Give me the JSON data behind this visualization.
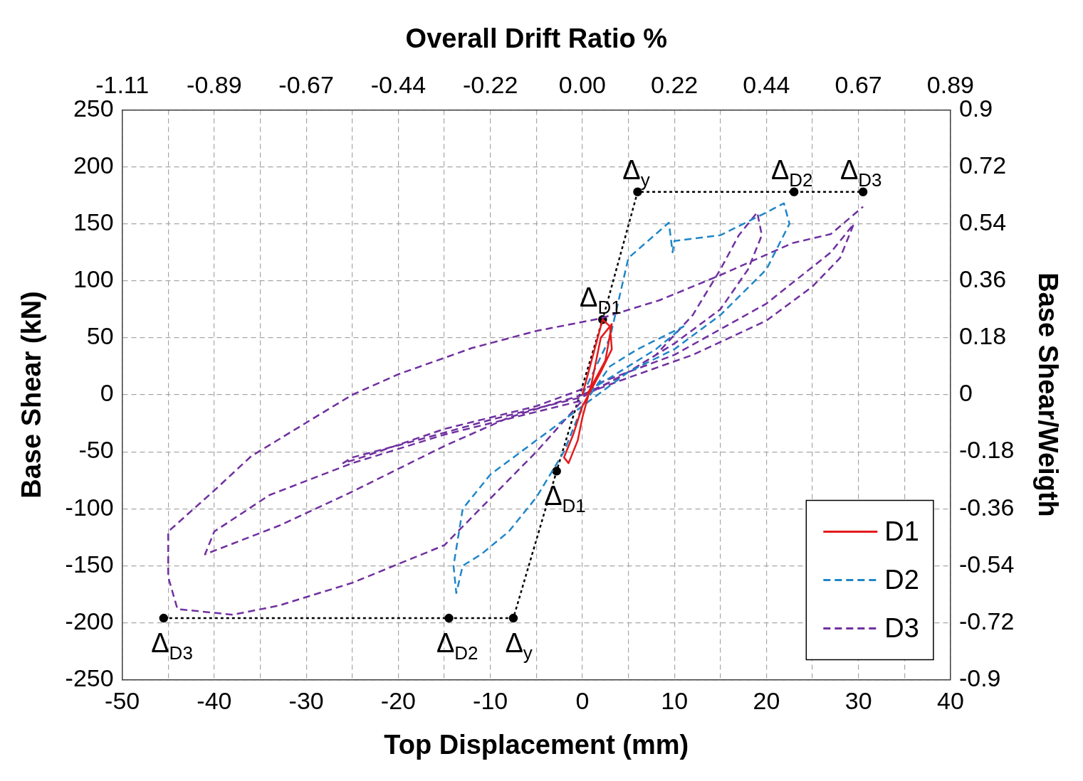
{
  "chart_data": {
    "type": "line",
    "x2label": "Overall Drift Ratio %",
    "xlabel": "Top Displacement (mm)",
    "ylabel": "Base Shear (kN)",
    "y2label": "Base Shear/Weigth",
    "xlim": [
      -50,
      40
    ],
    "xticks": [
      -50,
      {
        "value": -45,
        "label": null
      },
      -40,
      {
        "value": -35,
        "label": null
      },
      -30,
      {
        "value": -25,
        "label": null
      },
      -20,
      {
        "value": -15,
        "label": null
      },
      -10,
      {
        "value": -5,
        "label": null
      },
      0,
      {
        "value": 5,
        "label": null
      },
      10,
      {
        "value": 15,
        "label": null
      },
      20,
      {
        "value": 25,
        "label": null
      },
      30,
      {
        "value": 35,
        "label": null
      },
      40
    ],
    "x2lim": [
      -1.111,
      0.8889
    ],
    "x2ticks": [
      {
        "value": -1.111,
        "label": "-1.11"
      },
      {
        "value": -0.8889,
        "label": "-0.89"
      },
      {
        "value": -0.6667,
        "label": "-0.67"
      },
      {
        "value": -0.4444,
        "label": "-0.44"
      },
      {
        "value": -0.2222,
        "label": "-0.22"
      },
      {
        "value": 0,
        "label": "0.00"
      },
      {
        "value": 0.2222,
        "label": "0.22"
      },
      {
        "value": 0.4444,
        "label": "0.44"
      },
      {
        "value": 0.6667,
        "label": "0.67"
      },
      {
        "value": 0.8889,
        "label": "0.89"
      }
    ],
    "ylim": [
      -250,
      250
    ],
    "yticks": [
      -250,
      -200,
      -150,
      -100,
      -50,
      0,
      50,
      100,
      150,
      200,
      250
    ],
    "y2lim": [
      -0.9,
      0.9
    ],
    "y2ticks": [
      -0.9,
      -0.72,
      -0.54,
      -0.36,
      -0.18,
      0,
      0.18,
      0.36,
      0.54,
      0.72,
      0.9
    ],
    "grid": true,
    "legend": "bottom right",
    "series": [
      {
        "name": "D1",
        "color": "#e41a1c",
        "line_style": "solid",
        "x": [
          0,
          1,
          2.2,
          3,
          3.2,
          2,
          0,
          -1,
          -2,
          -1.5,
          -0.5,
          0,
          1,
          2,
          3.2,
          2.5,
          0.5
        ],
        "values": [
          0,
          30,
          66,
          60,
          40,
          20,
          -10,
          -35,
          -55,
          -60,
          -40,
          -20,
          10,
          50,
          62,
          30,
          0
        ]
      },
      {
        "name": "D2",
        "color": "#1f86c8",
        "line_style": "dashed",
        "x": [
          0,
          3,
          5,
          9.4,
          9.8,
          10,
          15,
          20,
          21.9,
          22.5,
          20,
          15,
          10,
          5,
          0,
          -5,
          -10,
          -13,
          -14,
          -13.7,
          -13,
          -11,
          -8,
          -5,
          -2,
          0,
          3,
          6,
          11,
          8,
          3,
          1
        ],
        "values": [
          0,
          50,
          120,
          151,
          125,
          135,
          140,
          160,
          168,
          150,
          110,
          70,
          40,
          20,
          -10,
          -40,
          -70,
          -100,
          -150,
          -174,
          -150,
          -140,
          -120,
          -90,
          -50,
          -10,
          25,
          40,
          60,
          40,
          15,
          5
        ]
      },
      {
        "name": "D3",
        "color": "#7030a0",
        "line_style": "dashed",
        "x": [
          0,
          4,
          8,
          12,
          15,
          17,
          19,
          19.5,
          18,
          15,
          10,
          5,
          0,
          -10,
          -18,
          -25,
          -26,
          -24,
          -15,
          -5,
          0,
          10,
          20,
          27,
          29.5,
          28,
          25,
          20,
          12,
          5,
          0,
          -8,
          -15,
          -25,
          -33,
          -41,
          -40,
          -34,
          -25,
          -15,
          -5,
          0,
          -5,
          -15,
          -25,
          -33,
          -38,
          -44,
          -45,
          -45,
          -40,
          -36,
          -29.5,
          -25,
          -20,
          -12,
          -5,
          2,
          8.4,
          15,
          22.8,
          27,
          30.5
        ],
        "values": [
          0,
          15,
          35,
          70,
          110,
          140,
          160,
          140,
          110,
          75,
          45,
          20,
          -2,
          -22,
          -40,
          -55,
          -60,
          -55,
          -30,
          -10,
          5,
          35,
          80,
          125,
          150,
          120,
          95,
          65,
          35,
          15,
          0,
          -20,
          -45,
          -85,
          -115,
          -140,
          -120,
          -88,
          -60,
          -35,
          -15,
          -5,
          -50,
          -132,
          -165,
          -185,
          -193,
          -188,
          -160,
          -120,
          -84,
          -54,
          -22,
          0,
          18,
          41,
          56,
          67,
          83,
          105,
          133,
          141,
          165
        ]
      },
      {
        "color": "#000000",
        "line_style": "dotted",
        "marker": "circle",
        "x": [
          -45.5,
          -14.5,
          -7.5,
          -2.8,
          2.2,
          6,
          23,
          30.5
        ],
        "values": [
          -196,
          -196,
          -196,
          -67,
          66,
          178,
          178,
          178
        ]
      }
    ],
    "annotations": [
      {
        "text": "Δ$_{D3}$",
        "x": -45.5,
        "y": -196
      },
      {
        "text": "Δ$_{D2}$",
        "x": -14.5,
        "y": -196
      },
      {
        "text": "Δ$_{y}$",
        "x": -7.5,
        "y": -196
      },
      {
        "text": "Δ$_{D1}$",
        "x": -2.8,
        "y": -67
      },
      {
        "text": "Δ$_{D1}$",
        "x": 2.2,
        "y": 66
      },
      {
        "text": "Δ$_{y}$",
        "x": 6,
        "y": 178
      },
      {
        "text": "Δ$_{D2}$",
        "x": 23,
        "y": 178
      },
      {
        "text": "Δ$_{D3}$",
        "x": 30.5,
        "y": 178
      }
    ]
  }
}
